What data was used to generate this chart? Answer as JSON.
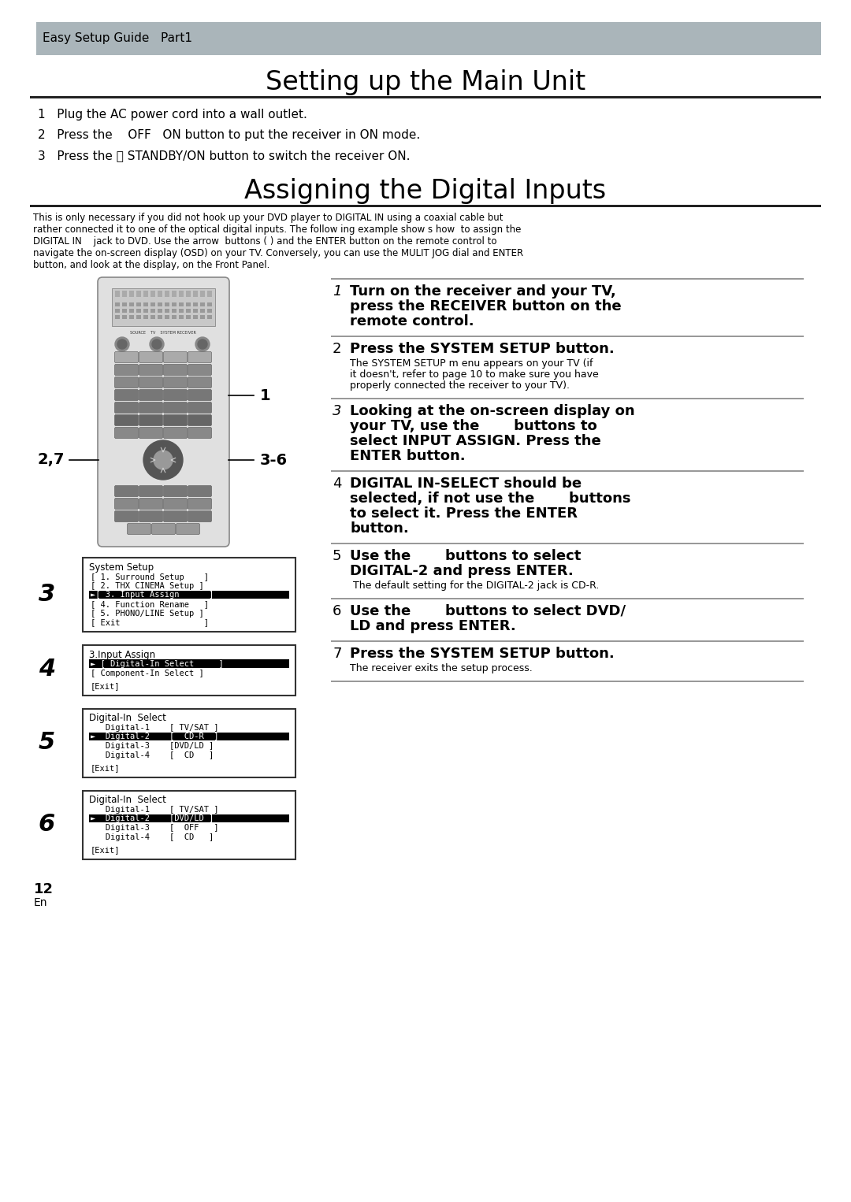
{
  "page_bg": "#ffffff",
  "header_bg": "#aab5ba",
  "header_text": "Easy Setup Guide   Part1",
  "title1": "Setting up the Main Unit",
  "title2": "Assigning the Digital Inputs",
  "step1_items": [
    "1   Plug the AC power cord into a wall outlet.",
    "2   Press the    OFF   ON button to put the receiver in ON mode.",
    "3   Press the ⏻ STANDBY/ON button to switch the receiver ON."
  ],
  "intro_lines": [
    "This is only necessary if you did not hook up your DVD player to DIGITAL IN using a coaxial cable but",
    "rather connected it to one of the optical digital inputs. The follow ing example show s how  to assign the",
    "DIGITAL IN    jack to DVD. Use the arrow  buttons ( ) and the ENTER button on the remote control to",
    "navigate the on-screen display (OSD) on your TV. Conversely, you can use the MULIT JOG dial and ENTER",
    "button, and look at the display, on the Front Panel."
  ],
  "right_steps": [
    {
      "num": "1",
      "italic_num": true,
      "bold": [
        "Turn on the receiver and your TV,",
        "press the RECEIVER button on the",
        "remote control."
      ],
      "normal": []
    },
    {
      "num": "2",
      "italic_num": false,
      "bold": [
        "Press the SYSTEM SETUP button."
      ],
      "normal": [
        "The SYSTEM SETUP m enu appears on your TV (if",
        "it doesn't, refer to page 10 to make sure you have",
        "properly connected the receiver to your TV)."
      ]
    },
    {
      "num": "3",
      "italic_num": true,
      "bold": [
        "Looking at the on-screen display on",
        "your TV, use the       buttons to",
        "select INPUT ASSIGN. Press the",
        "ENTER button."
      ],
      "normal": []
    },
    {
      "num": "4",
      "italic_num": false,
      "bold": [
        "DIGITAL IN-SELECT should be",
        "selected, if not use the       buttons",
        "to select it. Press the ENTER",
        "button."
      ],
      "normal": []
    },
    {
      "num": "5",
      "italic_num": false,
      "bold": [
        "Use the       buttons to select",
        "DIGITAL-2 and press ENTER."
      ],
      "normal": [
        " The default setting for the DIGITAL-2 jack is CD-R."
      ]
    },
    {
      "num": "6",
      "italic_num": false,
      "bold": [
        "Use the       buttons to select DVD/",
        "LD and press ENTER."
      ],
      "normal": []
    },
    {
      "num": "7",
      "italic_num": false,
      "bold": [
        "Press the SYSTEM SETUP button."
      ],
      "normal": [
        "The receiver exits the setup process."
      ]
    }
  ],
  "screen3_title": "System Setup",
  "screen3_items": [
    [
      "[ 1. Surround Setup    ]",
      false
    ],
    [
      "[ 2. THX CINEMA Setup ]",
      false
    ],
    [
      "►[ 3. Input Assign      ]",
      true
    ],
    [
      "[ 4. Function Rename   ]",
      false
    ],
    [
      "[ 5. PHONO/LINE Setup ]",
      false
    ],
    [
      "[ Exit                 ]",
      false
    ]
  ],
  "screen4_title": "3.Input Assign",
  "screen4_items": [
    [
      "► [ Digital-In Select     ]",
      true
    ],
    [
      "[ Component-In Select ]",
      false
    ],
    [
      "",
      false
    ],
    [
      "[Exit]",
      false
    ]
  ],
  "screen5_title": "Digital-In  Select",
  "screen5_items": [
    [
      "   Digital-1    [ TV/SAT ]",
      false
    ],
    [
      "►  Digital-2    [  CD-R  ]",
      true
    ],
    [
      "   Digital-3    [DVD/LD ]",
      false
    ],
    [
      "   Digital-4    [  CD   ]",
      false
    ],
    [
      "",
      false
    ],
    [
      "[Exit]",
      false
    ]
  ],
  "screen6_title": "Digital-In  Select",
  "screen6_items": [
    [
      "   Digital-1    [ TV/SAT ]",
      false
    ],
    [
      "►  Digital-2    [DVD/LD ]",
      true
    ],
    [
      "   Digital-3    [  OFF   ]",
      false
    ],
    [
      "   Digital-4    [  CD   ]",
      false
    ],
    [
      "",
      false
    ],
    [
      "[Exit]",
      false
    ]
  ],
  "divider_color": "#222222",
  "sep_color": "#999999",
  "box_border_color": "#333333",
  "label_color": "#000000"
}
